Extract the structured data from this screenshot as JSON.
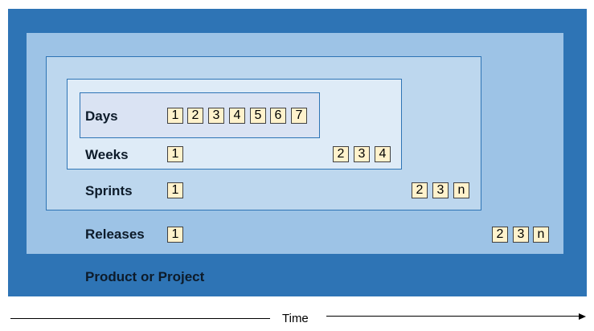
{
  "labels": {
    "days": "Days",
    "weeks": "Weeks",
    "sprints": "Sprints",
    "releases": "Releases",
    "product": "Product or Project"
  },
  "days_cells": [
    "1",
    "2",
    "3",
    "4",
    "5",
    "6",
    "7"
  ],
  "weeks_cells": {
    "first": "1",
    "rest": [
      "2",
      "3",
      "4"
    ]
  },
  "sprints_cells": {
    "first": "1",
    "rest": [
      "2",
      "3",
      "n"
    ]
  },
  "releases_cells": {
    "first": "1",
    "rest": [
      "2",
      "3",
      "n"
    ]
  },
  "time_axis": {
    "label": "Time"
  },
  "colors": {
    "product": "#2e74b5",
    "releases": "#9dc3e6",
    "sprints": "#bdd7ee",
    "weeks": "#deebf7",
    "days": "#dae3f3",
    "cell": "#fff2cc"
  }
}
